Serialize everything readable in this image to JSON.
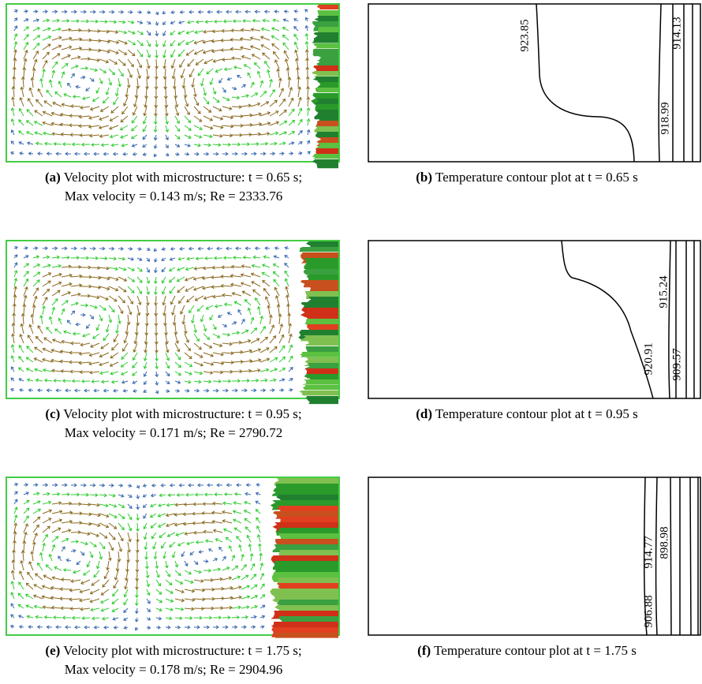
{
  "panels": [
    {
      "label": "(a)",
      "caption": [
        "Velocity plot with microstructure: t = 0.65 s;",
        "Max velocity = 0.143 m/s; Re = 2333.76"
      ]
    },
    {
      "label": "(b)",
      "caption": [
        "Temperature contour plot at t = 0.65 s"
      ],
      "contour_labels": [
        "923.85",
        "914.13",
        "918.99"
      ]
    },
    {
      "label": "(c)",
      "caption": [
        "Velocity plot with microstructure: t = 0.95 s;",
        "Max velocity = 0.171 m/s; Re = 2790.72"
      ]
    },
    {
      "label": "(d)",
      "caption": [
        "Temperature contour plot at t = 0.95 s"
      ],
      "contour_labels": [
        "915.24",
        "920.91",
        "909.57"
      ]
    },
    {
      "label": "(e)",
      "caption": [
        "Velocity plot with microstructure: t = 1.75 s;",
        "Max velocity = 0.178 m/s; Re = 2904.96"
      ]
    },
    {
      "label": "(f)",
      "caption": [
        "Temperature contour plot at t = 1.75 s"
      ],
      "contour_labels": [
        "914.77",
        "898.98",
        "906.88"
      ]
    }
  ]
}
